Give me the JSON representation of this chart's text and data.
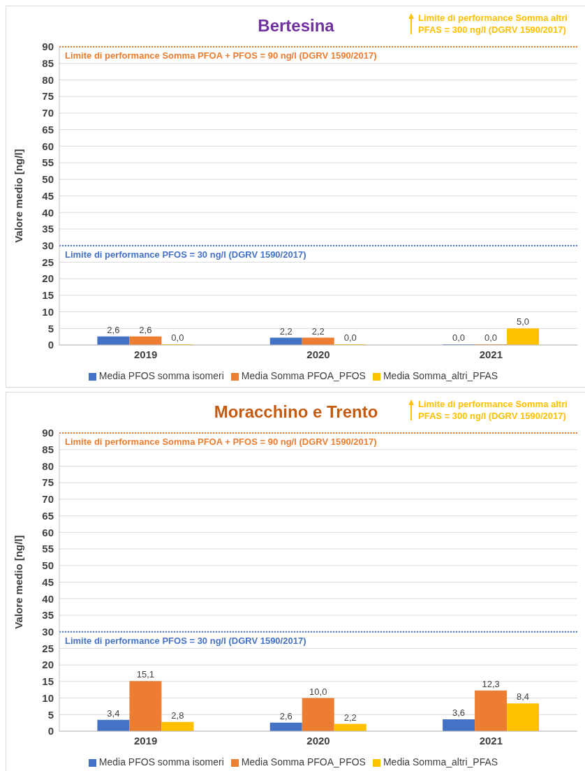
{
  "chart_data": [
    {
      "type": "bar",
      "title": "Bertesina",
      "ylabel": "Valore medio [ng/l]",
      "categories": [
        "2019",
        "2020",
        "2021"
      ],
      "series": [
        {
          "name": "Media PFOS somma isomeri",
          "color": "#4472c4",
          "values": [
            2.6,
            2.2,
            0.0
          ],
          "value_labels": [
            "2,6",
            "2,2",
            "0,0"
          ]
        },
        {
          "name": "Media Somma PFOA_PFOS",
          "color": "#ed7d31",
          "values": [
            2.6,
            2.2,
            0.0
          ],
          "value_labels": [
            "2,6",
            "2,2",
            "0,0"
          ]
        },
        {
          "name": "Media Somma_altri_PFAS",
          "color": "#ffc000",
          "values": [
            0.0,
            0.0,
            5.0
          ],
          "value_labels": [
            "0,0",
            "0,0",
            "5,0"
          ]
        }
      ],
      "ylim": [
        0,
        90
      ],
      "yticks": [
        0,
        5,
        10,
        15,
        20,
        25,
        30,
        35,
        40,
        45,
        50,
        55,
        60,
        65,
        70,
        75,
        80,
        85,
        90
      ],
      "grid": "y",
      "legend": "bottom",
      "ref_lines": [
        {
          "axis": "y",
          "value": 90,
          "label": "Limite di performance Somma PFOA + PFOS = 90 ng/l (DGRV 1590/2017)",
          "color": "#ed7d31",
          "line_style": "dotted"
        },
        {
          "axis": "y",
          "value": 30,
          "label": "Limite di performance PFOS = 30 ng/l (DGRV 1590/2017)",
          "color": "#4472c4",
          "line_style": "dotted"
        }
      ],
      "annotations": [
        "Limite di performance Somma altri PFAS = 300 ng/l (DGRV 1590/2017)"
      ]
    },
    {
      "type": "bar",
      "title": "Moracchino e Trento",
      "ylabel": "Valore medio [ng/l]",
      "categories": [
        "2019",
        "2020",
        "2021"
      ],
      "series": [
        {
          "name": "Media PFOS somma isomeri",
          "color": "#4472c4",
          "values": [
            3.4,
            2.6,
            3.6
          ],
          "value_labels": [
            "3,4",
            "2,6",
            "3,6"
          ]
        },
        {
          "name": "Media Somma PFOA_PFOS",
          "color": "#ed7d31",
          "values": [
            15.1,
            10.0,
            12.3
          ],
          "value_labels": [
            "15,1",
            "10,0",
            "12,3"
          ]
        },
        {
          "name": "Media Somma_altri_PFAS",
          "color": "#ffc000",
          "values": [
            2.8,
            2.2,
            8.4
          ],
          "value_labels": [
            "2,8",
            "2,2",
            "8,4"
          ]
        }
      ],
      "ylim": [
        0,
        90
      ],
      "yticks": [
        0,
        5,
        10,
        15,
        20,
        25,
        30,
        35,
        40,
        45,
        50,
        55,
        60,
        65,
        70,
        75,
        80,
        85,
        90
      ],
      "grid": "y",
      "legend": "bottom",
      "ref_lines": [
        {
          "axis": "y",
          "value": 90,
          "label": "Limite di performance Somma PFOA + PFOS = 90 ng/l (DGRV 1590/2017)",
          "color": "#ed7d31",
          "line_style": "dotted"
        },
        {
          "axis": "y",
          "value": 30,
          "label": "Limite di performance PFOS = 30 ng/l (DGRV 1590/2017)",
          "color": "#4472c4",
          "line_style": "dotted"
        }
      ],
      "annotations": [
        "Limite di performance Somma altri PFAS = 300 ng/l (DGRV 1590/2017)"
      ]
    }
  ]
}
